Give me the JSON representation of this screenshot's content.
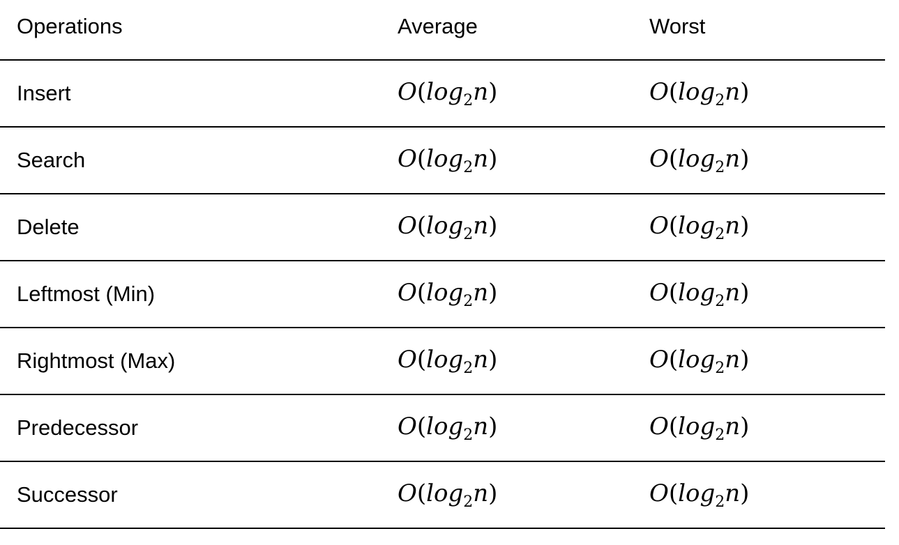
{
  "table": {
    "headers": {
      "operations": "Operations",
      "average": "Average",
      "worst": "Worst"
    },
    "rows": [
      {
        "operation": "Insert",
        "average": {
          "fn": "O",
          "open": "(",
          "base": "log",
          "sub": "2",
          "var": "n",
          "close": ")"
        },
        "worst": {
          "fn": "O",
          "open": "(",
          "base": "log",
          "sub": "2",
          "var": "n",
          "close": ")"
        }
      },
      {
        "operation": "Search",
        "average": {
          "fn": "O",
          "open": "(",
          "base": "log",
          "sub": "2",
          "var": "n",
          "close": ")"
        },
        "worst": {
          "fn": "O",
          "open": "(",
          "base": "log",
          "sub": "2",
          "var": "n",
          "close": ")"
        }
      },
      {
        "operation": "Delete",
        "average": {
          "fn": "O",
          "open": "(",
          "base": "log",
          "sub": "2",
          "var": "n",
          "close": ")"
        },
        "worst": {
          "fn": "O",
          "open": "(",
          "base": "log",
          "sub": "2",
          "var": "n",
          "close": ")"
        }
      },
      {
        "operation": "Leftmost (Min)",
        "average": {
          "fn": "O",
          "open": "(",
          "base": "log",
          "sub": "2",
          "var": "n",
          "close": ")"
        },
        "worst": {
          "fn": "O",
          "open": "(",
          "base": "log",
          "sub": "2",
          "var": "n",
          "close": ")"
        }
      },
      {
        "operation": "Rightmost (Max)",
        "average": {
          "fn": "O",
          "open": "(",
          "base": "log",
          "sub": "2",
          "var": "n",
          "close": ")"
        },
        "worst": {
          "fn": "O",
          "open": "(",
          "base": "log",
          "sub": "2",
          "var": "n",
          "close": ")"
        }
      },
      {
        "operation": "Predecessor",
        "average": {
          "fn": "O",
          "open": "(",
          "base": "log",
          "sub": "2",
          "var": "n",
          "close": ")"
        },
        "worst": {
          "fn": "O",
          "open": "(",
          "base": "log",
          "sub": "2",
          "var": "n",
          "close": ")"
        }
      },
      {
        "operation": "Successor",
        "average": {
          "fn": "O",
          "open": "(",
          "base": "log",
          "sub": "2",
          "var": "n",
          "close": ")"
        },
        "worst": {
          "fn": "O",
          "open": "(",
          "base": "log",
          "sub": "2",
          "var": "n",
          "close": ")"
        }
      }
    ]
  }
}
